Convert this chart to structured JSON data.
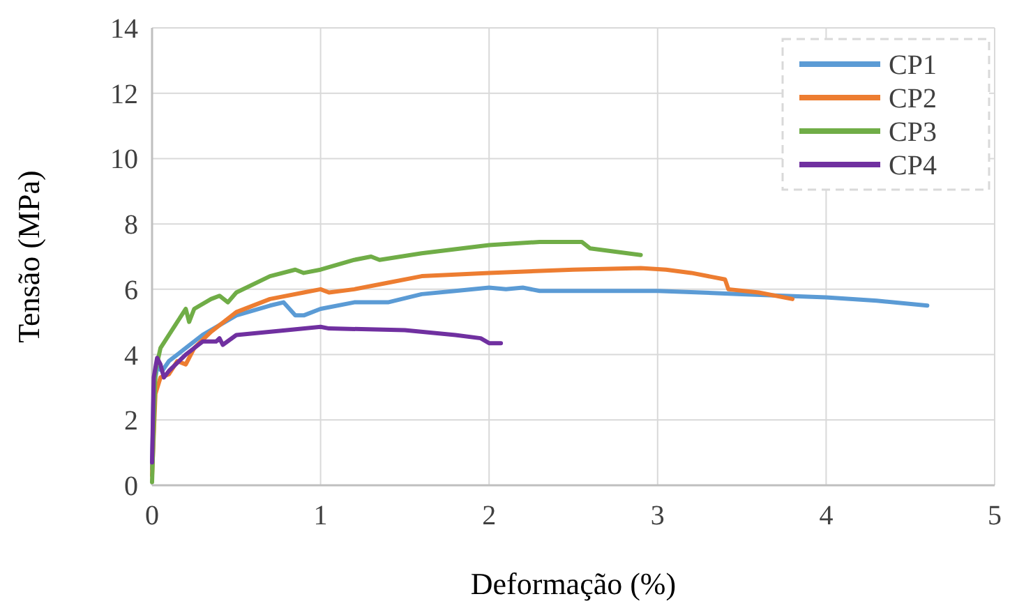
{
  "chart_data": {
    "type": "line",
    "xlabel": "Deformação (%)",
    "ylabel": "Tensão (MPa)",
    "xlim": [
      0,
      5
    ],
    "xticks": [
      0,
      1,
      2,
      3,
      4,
      5
    ],
    "ylim": [
      0,
      14
    ],
    "yticks": [
      0,
      2,
      4,
      6,
      8,
      10,
      12,
      14
    ],
    "grid": true,
    "legend": "top right",
    "marker": "none",
    "line_style": "solid",
    "series": [
      {
        "name": "CP1",
        "color": "#5b9bd5",
        "x": [
          0,
          0.01,
          0.03,
          0.06,
          0.1,
          0.2,
          0.3,
          0.5,
          0.7,
          0.78,
          0.85,
          0.9,
          1.0,
          1.2,
          1.4,
          1.6,
          1.8,
          2.0,
          2.1,
          2.2,
          2.3,
          2.6,
          3.0,
          3.5,
          4.0,
          4.3,
          4.6
        ],
        "values": [
          0.5,
          3.0,
          3.6,
          3.5,
          3.8,
          4.2,
          4.6,
          5.2,
          5.5,
          5.6,
          5.2,
          5.2,
          5.4,
          5.6,
          5.6,
          5.85,
          5.95,
          6.05,
          6.0,
          6.05,
          5.95,
          5.95,
          5.95,
          5.85,
          5.75,
          5.65,
          5.5
        ]
      },
      {
        "name": "CP2",
        "color": "#ed7d31",
        "x": [
          0,
          0.02,
          0.05,
          0.1,
          0.15,
          0.2,
          0.25,
          0.35,
          0.5,
          0.7,
          0.9,
          1.0,
          1.05,
          1.2,
          1.4,
          1.6,
          2.0,
          2.5,
          2.9,
          3.05,
          3.2,
          3.4,
          3.42,
          3.6,
          3.8
        ],
        "values": [
          0.3,
          2.8,
          3.3,
          3.4,
          3.8,
          3.7,
          4.2,
          4.7,
          5.3,
          5.7,
          5.9,
          6.0,
          5.9,
          6.0,
          6.2,
          6.4,
          6.5,
          6.6,
          6.65,
          6.6,
          6.5,
          6.3,
          6.0,
          5.9,
          5.7
        ]
      },
      {
        "name": "CP3",
        "color": "#70ad47",
        "x": [
          0,
          0.02,
          0.05,
          0.1,
          0.15,
          0.2,
          0.22,
          0.25,
          0.35,
          0.4,
          0.45,
          0.5,
          0.7,
          0.85,
          0.9,
          1.0,
          1.2,
          1.3,
          1.35,
          1.6,
          2.0,
          2.3,
          2.55,
          2.6,
          2.9
        ],
        "values": [
          0.1,
          3.5,
          4.2,
          4.6,
          5.0,
          5.4,
          5.0,
          5.4,
          5.7,
          5.8,
          5.6,
          5.9,
          6.4,
          6.6,
          6.5,
          6.6,
          6.9,
          7.0,
          6.9,
          7.1,
          7.35,
          7.45,
          7.45,
          7.25,
          7.05
        ]
      },
      {
        "name": "CP4",
        "color": "#7030a0",
        "x": [
          0,
          0.01,
          0.03,
          0.05,
          0.07,
          0.1,
          0.2,
          0.3,
          0.38,
          0.4,
          0.42,
          0.5,
          0.8,
          1.0,
          1.05,
          1.5,
          1.8,
          1.95,
          2.0,
          2.07
        ],
        "values": [
          0.7,
          3.3,
          3.9,
          3.7,
          3.3,
          3.5,
          4.0,
          4.4,
          4.4,
          4.5,
          4.3,
          4.6,
          4.75,
          4.85,
          4.8,
          4.75,
          4.6,
          4.5,
          4.35,
          4.35
        ]
      }
    ]
  }
}
